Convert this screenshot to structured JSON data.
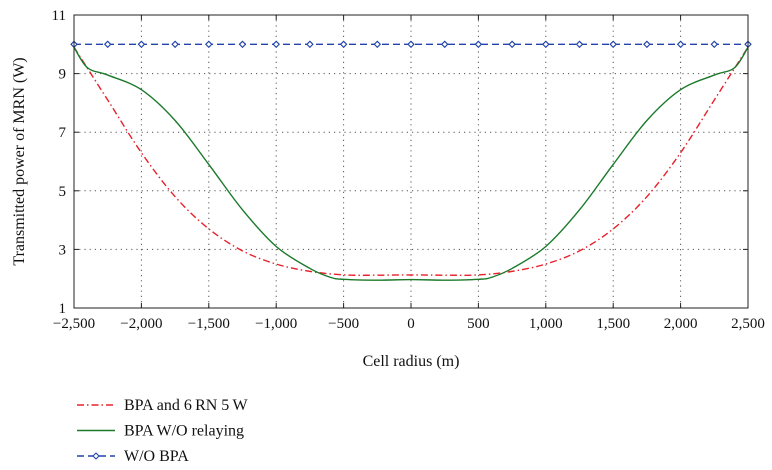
{
  "chart_data": {
    "type": "line",
    "title": "",
    "xlabel": "Cell radius (m)",
    "ylabel": "Transmitted power of MRN (W)",
    "xlim": [
      -2500,
      2500
    ],
    "ylim": [
      1,
      11
    ],
    "x_ticks": [
      -2500,
      -2000,
      -1500,
      -1000,
      -500,
      0,
      500,
      1000,
      1500,
      2000,
      2500
    ],
    "x_tick_labels": [
      "−2,500",
      "−2,000",
      "−1,500",
      "−1,000",
      "−500",
      "0",
      "500",
      "1,000",
      "1,500",
      "2,000",
      "2,500"
    ],
    "y_ticks": [
      1,
      3,
      5,
      7,
      9,
      11
    ],
    "y_tick_labels": [
      "1",
      "3",
      "5",
      "7",
      "9",
      "11"
    ],
    "grid": true,
    "legend_position": "bottom-left-outside",
    "series": [
      {
        "name": "BPA and 6 RN 5 W",
        "color": "#e8202a",
        "line_style": "dash-dot",
        "marker": "none",
        "x": [
          -2500,
          -2250,
          -2000,
          -1750,
          -1500,
          -1250,
          -1000,
          -750,
          -500,
          -250,
          0,
          250,
          500,
          750,
          1000,
          1250,
          1500,
          1750,
          2000,
          2250,
          2500
        ],
        "y": [
          9.9,
          8.1,
          6.3,
          4.8,
          3.7,
          2.95,
          2.5,
          2.25,
          2.13,
          2.12,
          2.13,
          2.12,
          2.13,
          2.25,
          2.5,
          2.95,
          3.7,
          4.8,
          6.3,
          8.1,
          9.9
        ]
      },
      {
        "name": "BPA W/O relaying",
        "color": "#1a7a2a",
        "line_style": "solid",
        "marker": "none",
        "x": [
          -2500,
          -2400,
          -2250,
          -2000,
          -1750,
          -1500,
          -1250,
          -1000,
          -750,
          -600,
          -500,
          -250,
          0,
          250,
          500,
          600,
          750,
          1000,
          1250,
          1500,
          1750,
          2000,
          2250,
          2400,
          2500
        ],
        "y": [
          9.9,
          9.2,
          8.95,
          8.45,
          7.4,
          5.9,
          4.35,
          3.1,
          2.35,
          2.05,
          1.98,
          1.95,
          1.97,
          1.95,
          1.98,
          2.05,
          2.35,
          3.1,
          4.35,
          5.9,
          7.4,
          8.45,
          8.95,
          9.2,
          9.9
        ]
      },
      {
        "name": "W/O BPA",
        "color": "#2244aa",
        "line_style": "dashed",
        "marker": "diamond",
        "x": [
          -2500,
          -2250,
          -2000,
          -1750,
          -1500,
          -1250,
          -1000,
          -750,
          -500,
          -250,
          0,
          250,
          500,
          750,
          1000,
          1250,
          1500,
          1750,
          2000,
          2250,
          2500
        ],
        "y": [
          10,
          10,
          10,
          10,
          10,
          10,
          10,
          10,
          10,
          10,
          10,
          10,
          10,
          10,
          10,
          10,
          10,
          10,
          10,
          10,
          10
        ]
      }
    ]
  }
}
